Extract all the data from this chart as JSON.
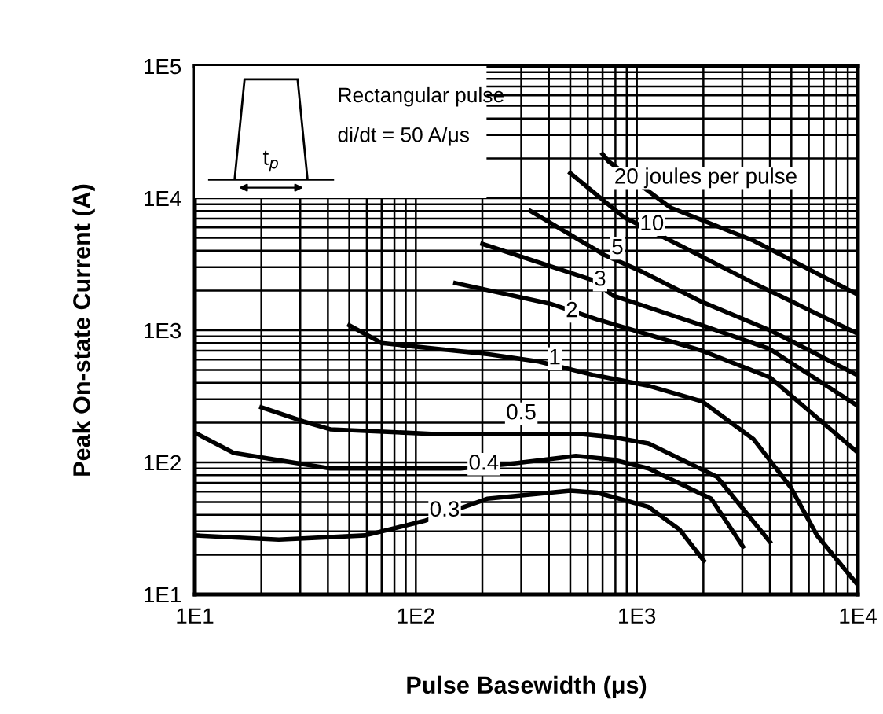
{
  "chart_data": {
    "type": "line",
    "xlabel": "Pulse Basewidth (μs)",
    "ylabel": "Peak On-state Current (A)",
    "log": "xy",
    "grid": true,
    "marker": "none",
    "line_style": "solid",
    "xlim": [
      10,
      10000
    ],
    "ylim": [
      10,
      100000
    ],
    "xticks": [
      {
        "value": 10,
        "label": "1E1"
      },
      {
        "value": 20,
        "label": null
      },
      {
        "value": 30,
        "label": null
      },
      {
        "value": 40,
        "label": null
      },
      {
        "value": 50,
        "label": null
      },
      {
        "value": 60,
        "label": null
      },
      {
        "value": 70,
        "label": null
      },
      {
        "value": 80,
        "label": null
      },
      {
        "value": 90,
        "label": null
      },
      {
        "value": 100,
        "label": "1E2"
      },
      {
        "value": 200,
        "label": null
      },
      {
        "value": 300,
        "label": null
      },
      {
        "value": 400,
        "label": null
      },
      {
        "value": 500,
        "label": null
      },
      {
        "value": 600,
        "label": null
      },
      {
        "value": 700,
        "label": null
      },
      {
        "value": 800,
        "label": null
      },
      {
        "value": 900,
        "label": null
      },
      {
        "value": 1000,
        "label": "1E3"
      },
      {
        "value": 2000,
        "label": null
      },
      {
        "value": 3000,
        "label": null
      },
      {
        "value": 4000,
        "label": null
      },
      {
        "value": 5000,
        "label": null
      },
      {
        "value": 6000,
        "label": null
      },
      {
        "value": 7000,
        "label": null
      },
      {
        "value": 8000,
        "label": null
      },
      {
        "value": 9000,
        "label": null
      },
      {
        "value": 10000,
        "label": "1E4"
      }
    ],
    "yticks": [
      {
        "value": 10,
        "label": "1E1"
      },
      {
        "value": 20,
        "label": null
      },
      {
        "value": 30,
        "label": null
      },
      {
        "value": 40,
        "label": null
      },
      {
        "value": 50,
        "label": null
      },
      {
        "value": 60,
        "label": null
      },
      {
        "value": 70,
        "label": null
      },
      {
        "value": 80,
        "label": null
      },
      {
        "value": 90,
        "label": null
      },
      {
        "value": 100,
        "label": "1E2"
      },
      {
        "value": 200,
        "label": null
      },
      {
        "value": 300,
        "label": null
      },
      {
        "value": 400,
        "label": null
      },
      {
        "value": 500,
        "label": null
      },
      {
        "value": 600,
        "label": null
      },
      {
        "value": 700,
        "label": null
      },
      {
        "value": 800,
        "label": null
      },
      {
        "value": 900,
        "label": null
      },
      {
        "value": 1000,
        "label": "1E3"
      },
      {
        "value": 2000,
        "label": null
      },
      {
        "value": 3000,
        "label": null
      },
      {
        "value": 4000,
        "label": null
      },
      {
        "value": 5000,
        "label": null
      },
      {
        "value": 6000,
        "label": null
      },
      {
        "value": 7000,
        "label": null
      },
      {
        "value": 8000,
        "label": null
      },
      {
        "value": 9000,
        "label": null
      },
      {
        "value": 10000,
        "label": "1E4"
      },
      {
        "value": 20000,
        "label": null
      },
      {
        "value": 30000,
        "label": null
      },
      {
        "value": 40000,
        "label": null
      },
      {
        "value": 50000,
        "label": null
      },
      {
        "value": 60000,
        "label": null
      },
      {
        "value": 70000,
        "label": null
      },
      {
        "value": 80000,
        "label": null
      },
      {
        "value": 90000,
        "label": null
      },
      {
        "value": 100000,
        "label": "1E5"
      }
    ],
    "series": [
      {
        "color": "#000000",
        "x": [
          10,
          24,
          59,
          109,
          210,
          500,
          660,
          740,
          1130,
          1560,
          2010
        ],
        "values": [
          28,
          26,
          28,
          36,
          53,
          61,
          59,
          56,
          46,
          31,
          18
        ]
      },
      {
        "color": "#000000",
        "x": [
          10,
          15,
          41,
          159,
          260,
          530,
          780,
          1130,
          2170,
          3020
        ],
        "values": [
          168,
          118,
          90,
          90,
          97,
          112,
          105,
          90,
          53,
          23
        ]
      },
      {
        "color": "#000000",
        "x": [
          20,
          31,
          41,
          122,
          560,
          780,
          1130,
          2300,
          4000
        ],
        "values": [
          261,
          204,
          178,
          164,
          164,
          155,
          139,
          78,
          25
        ]
      },
      {
        "color": "#000000",
        "x": [
          50,
          70,
          210,
          360,
          630,
          1130,
          1970,
          3370,
          4960,
          6530,
          9900
        ],
        "values": [
          1090,
          800,
          660,
          580,
          460,
          380,
          290,
          150,
          65,
          28,
          12
        ]
      },
      {
        "color": "#000000",
        "x": [
          151,
          405,
          660,
          1970,
          4000,
          9900
        ],
        "values": [
          2280,
          1590,
          1210,
          700,
          440,
          120
        ]
      },
      {
        "color": "#000000",
        "x": [
          200,
          630,
          780,
          1970,
          4000,
          9900
        ],
        "values": [
          4500,
          2400,
          1830,
          1090,
          720,
          270
        ]
      },
      {
        "color": "#000000",
        "x": [
          330,
          716,
          1030,
          1970,
          4000,
          9900
        ],
        "values": [
          8000,
          3700,
          2830,
          1640,
          1000,
          460
        ]
      },
      {
        "color": "#000000",
        "x": [
          500,
          871,
          1420,
          3370,
          9900
        ],
        "values": [
          15500,
          7200,
          4770,
          2280,
          950
        ]
      },
      {
        "color": "#000000",
        "x": [
          700,
          745,
          1420,
          3370,
          9900
        ],
        "values": [
          21500,
          19000,
          8480,
          4770,
          1880
        ]
      }
    ],
    "annotations": [
      "t$_{p}$",
      "Rectangular pulse",
      "di/dt = 50 A/μs",
      {
        "text": "20 joules per pulse",
        "x": 790,
        "y": 17000
      },
      {
        "text": "10",
        "x": 1170,
        "y": 6300
      },
      {
        "text": "5",
        "x": 817,
        "y": 4160
      },
      {
        "text": "3",
        "x": 682,
        "y": 2400
      },
      {
        "text": "2",
        "x": 508,
        "y": 1390
      },
      {
        "text": "1",
        "x": 425,
        "y": 611
      },
      {
        "text": "0.5",
        "x": 300,
        "y": 234
      },
      {
        "text": "0.4",
        "x": 203,
        "y": 97
      },
      {
        "text": "0.3",
        "x": 135,
        "y": 43
      }
    ]
  }
}
